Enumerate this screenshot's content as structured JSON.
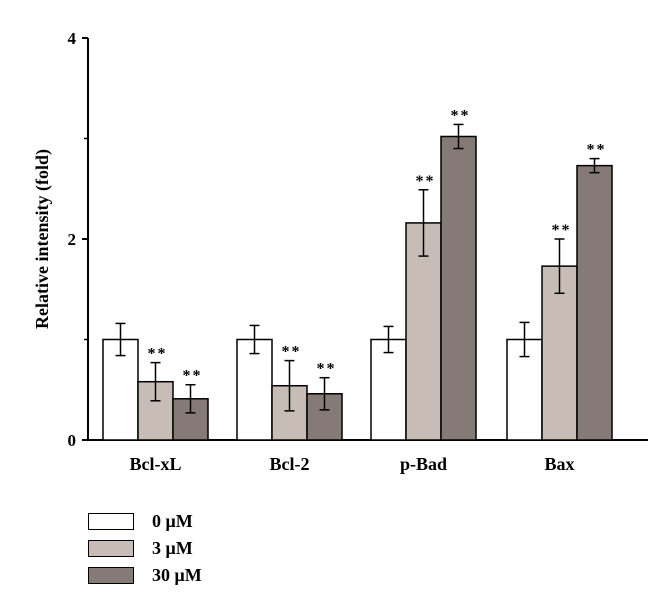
{
  "chart_data": {
    "type": "bar",
    "ylabel": "Relative intensity (fold)",
    "xlabel": "",
    "ylim": [
      0,
      4
    ],
    "yticks": [
      "0",
      "2",
      "4"
    ],
    "categories": [
      "Bcl-xL",
      "Bcl-2",
      "p-Bad",
      "Bax"
    ],
    "significance_marker": "**",
    "series": [
      {
        "name": "0 μM",
        "color": "#ffffff",
        "values": [
          1.0,
          1.0,
          1.0,
          1.0
        ],
        "errors": [
          0.16,
          0.14,
          0.13,
          0.17
        ],
        "significance": [
          "",
          "",
          "",
          ""
        ]
      },
      {
        "name": "3 μM",
        "color": "#c8bdb6",
        "values": [
          0.58,
          0.54,
          2.16,
          1.73
        ],
        "errors": [
          0.19,
          0.25,
          0.33,
          0.27
        ],
        "significance": [
          "**",
          "**",
          "**",
          "**"
        ]
      },
      {
        "name": "30 μM",
        "color": "#857a76",
        "values": [
          0.41,
          0.46,
          3.02,
          2.73
        ],
        "errors": [
          0.14,
          0.16,
          0.12,
          0.07
        ],
        "significance": [
          "**",
          "**",
          "**",
          "**"
        ]
      }
    ],
    "grid": false,
    "legend_position": "bottom-left"
  }
}
